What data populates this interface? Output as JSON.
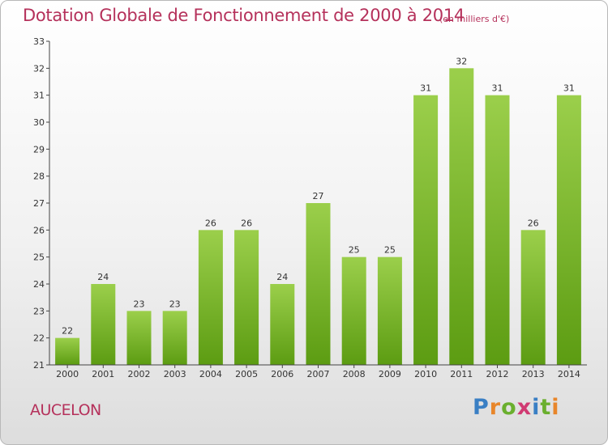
{
  "header": {
    "title": "Dotation Globale de Fonctionnement de 2000 à 2014",
    "unit": "(en milliers d'€)"
  },
  "footer": {
    "commune": "AUCELON",
    "brand": "Proxiti"
  },
  "colors": {
    "title": "#b5315b",
    "bar_top": "#9bcf4b",
    "bar_bottom": "#5c9c12",
    "axis": "#444444",
    "brand_letters": [
      "#3a7fc4",
      "#e8862a",
      "#6aaf2e",
      "#d03a72",
      "#3a7fc4",
      "#6aaf2e",
      "#e8862a"
    ]
  },
  "chart_data": {
    "type": "bar",
    "title": "Dotation Globale de Fonctionnement de 2000 à 2014",
    "subtitle": "(en milliers d'€)",
    "xlabel": "",
    "ylabel": "",
    "categories": [
      "2000",
      "2001",
      "2002",
      "2003",
      "2004",
      "2005",
      "2006",
      "2007",
      "2008",
      "2009",
      "2010",
      "2011",
      "2012",
      "2013",
      "2014"
    ],
    "values": [
      22,
      24,
      23,
      23,
      26,
      26,
      24,
      27,
      25,
      25,
      31,
      32,
      31,
      26,
      31
    ],
    "ylim": [
      21,
      33
    ],
    "yticks": [
      21,
      22,
      23,
      24,
      25,
      26,
      27,
      28,
      29,
      30,
      31,
      32,
      33
    ],
    "grid": false,
    "legend": "none",
    "data_labels": true
  }
}
